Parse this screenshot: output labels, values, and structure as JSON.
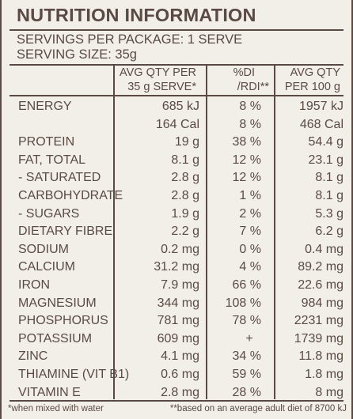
{
  "title": "NUTRITION INFORMATION",
  "servings_per_package": "SERVINGS PER PACKAGE: 1 SERVE",
  "serving_size": "SERVING SIZE: 35g",
  "columns": {
    "avg_qty_serve_line1": "AVG QTY PER",
    "avg_qty_serve_line2": "35 g SERVE*",
    "di_line1": "%DI",
    "di_line2": "/RDI**",
    "avg_qty_100_line1": "AVG QTY",
    "avg_qty_100_line2": "PER 100 g"
  },
  "rows": [
    {
      "name": "ENERGY",
      "per_serve": "685 kJ",
      "di": "8 %",
      "per_100g": "1957 kJ"
    },
    {
      "name": "",
      "per_serve": "164 Cal",
      "di": "8 %",
      "per_100g": "468 Cal"
    },
    {
      "name": "PROTEIN",
      "per_serve": "19 g",
      "di": "38 %",
      "per_100g": "54.4 g"
    },
    {
      "name": "FAT, TOTAL",
      "per_serve": "8.1 g",
      "di": "12 %",
      "per_100g": "23.1 g"
    },
    {
      "name": "- SATURATED",
      "per_serve": "2.8 g",
      "di": "12 %",
      "per_100g": "8.1 g"
    },
    {
      "name": "CARBOHYDRATE",
      "per_serve": "2.8 g",
      "di": "1 %",
      "per_100g": "8.1 g"
    },
    {
      "name": "- SUGARS",
      "per_serve": "1.9 g",
      "di": "2 %",
      "per_100g": "5.3 g"
    },
    {
      "name": "DIETARY FIBRE",
      "per_serve": "2.2 g",
      "di": "7 %",
      "per_100g": "6.2 g"
    },
    {
      "name": "SODIUM",
      "per_serve": "0.2 mg",
      "di": "0 %",
      "per_100g": "0.4 mg"
    },
    {
      "name": "CALCIUM",
      "per_serve": "31.2 mg",
      "di": "4 %",
      "per_100g": "89.2 mg"
    },
    {
      "name": "IRON",
      "per_serve": "7.9 mg",
      "di": "66 %",
      "per_100g": "22.6 mg"
    },
    {
      "name": "MAGNESIUM",
      "per_serve": "344 mg",
      "di": "108 %",
      "per_100g": "984 mg"
    },
    {
      "name": "PHOSPHORUS",
      "per_serve": "781 mg",
      "di": "78 %",
      "per_100g": "2231 mg"
    },
    {
      "name": "POTASSIUM",
      "per_serve": "609 mg",
      "di": "+",
      "per_100g": "1739 mg"
    },
    {
      "name": "ZINC",
      "per_serve": "4.1 mg",
      "di": "34 %",
      "per_100g": "11.8 mg"
    },
    {
      "name": "THIAMINE (VIT B1)",
      "per_serve": "0.6 mg",
      "di": "59 %",
      "per_100g": "1.8 mg"
    },
    {
      "name": "VITAMIN E",
      "per_serve": "2.8 mg",
      "di": "28 %",
      "per_100g": "8 mg"
    }
  ],
  "footnotes": {
    "left": "*when mixed with water",
    "right": "**based on an average adult diet of 8700 kJ"
  },
  "colors": {
    "ink": "#5b4a44",
    "background": "#f1efe8"
  }
}
